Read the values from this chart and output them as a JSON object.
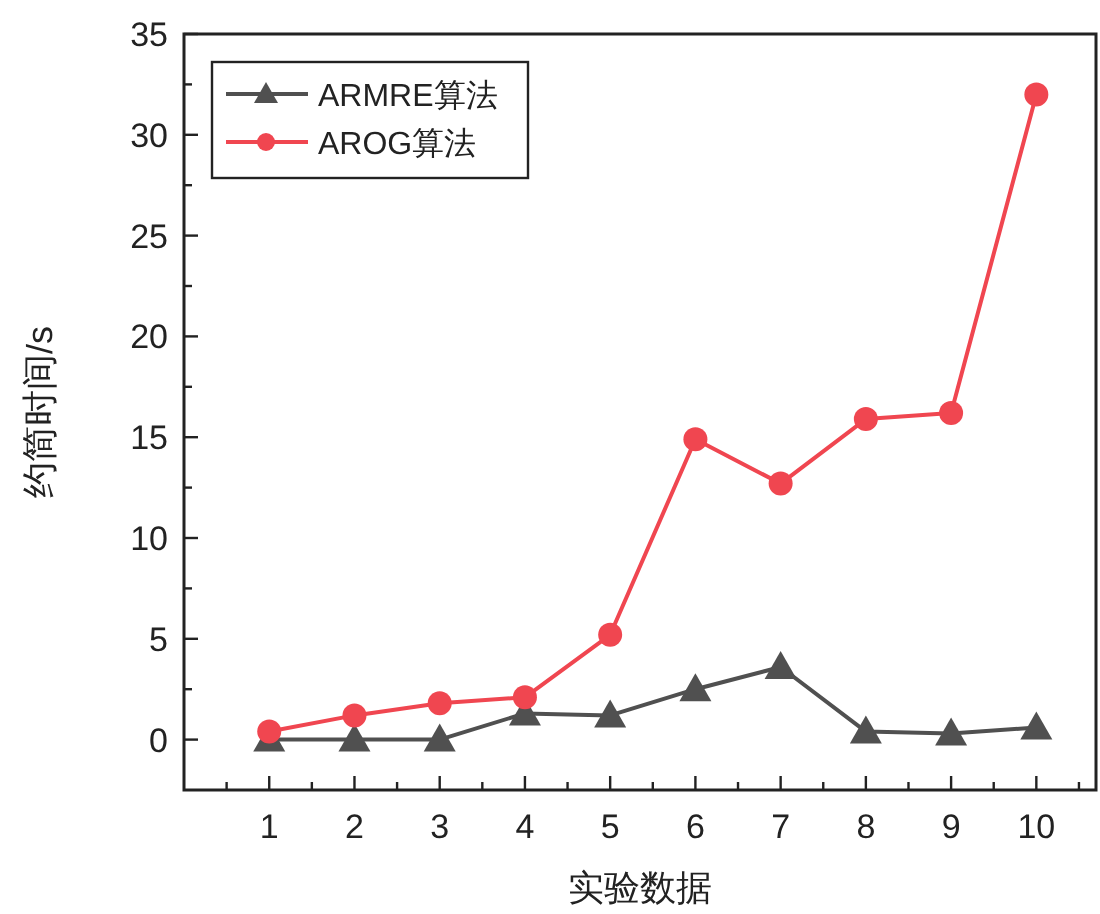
{
  "chart_data": {
    "type": "line",
    "xlabel": "实验数据",
    "ylabel": "约简时间/s",
    "x": [
      1,
      2,
      3,
      4,
      5,
      6,
      7,
      8,
      9,
      10
    ],
    "series": [
      {
        "name": "ARMRE算法",
        "color": "#505050",
        "marker": "triangle",
        "values": [
          0.0,
          0.0,
          0.0,
          1.3,
          1.2,
          2.5,
          3.6,
          0.4,
          0.3,
          0.6
        ]
      },
      {
        "name": "AROG算法",
        "color": "#f04650",
        "marker": "circle",
        "values": [
          0.4,
          1.2,
          1.8,
          2.1,
          5.2,
          14.9,
          12.7,
          15.9,
          16.2,
          32.0
        ]
      }
    ],
    "xlim": [
      0,
      10.7
    ],
    "xticks": [
      {
        "value": 0.5,
        "label": null
      },
      1,
      {
        "value": 1.5,
        "label": null
      },
      2,
      {
        "value": 2.5,
        "label": null
      },
      3,
      {
        "value": 3.5,
        "label": null
      },
      4,
      {
        "value": 4.5,
        "label": null
      },
      5,
      {
        "value": 5.5,
        "label": null
      },
      6,
      {
        "value": 6.5,
        "label": null
      },
      7,
      {
        "value": 7.5,
        "label": null
      },
      8,
      {
        "value": 8.5,
        "label": null
      },
      9,
      {
        "value": 9.5,
        "label": null
      },
      10,
      {
        "value": 10.5,
        "label": null
      }
    ],
    "ylim": [
      -2.5,
      35
    ],
    "yticks": [
      0,
      {
        "value": 2.5,
        "label": null
      },
      5,
      {
        "value": 7.5,
        "label": null
      },
      10,
      {
        "value": 12.5,
        "label": null
      },
      15,
      {
        "value": 17.5,
        "label": null
      },
      20,
      {
        "value": 22.5,
        "label": null
      },
      25,
      {
        "value": 27.5,
        "label": null
      },
      30,
      {
        "value": 32.5,
        "label": null
      },
      35
    ],
    "grid": false,
    "legend": "top left",
    "line_style": "solid"
  }
}
